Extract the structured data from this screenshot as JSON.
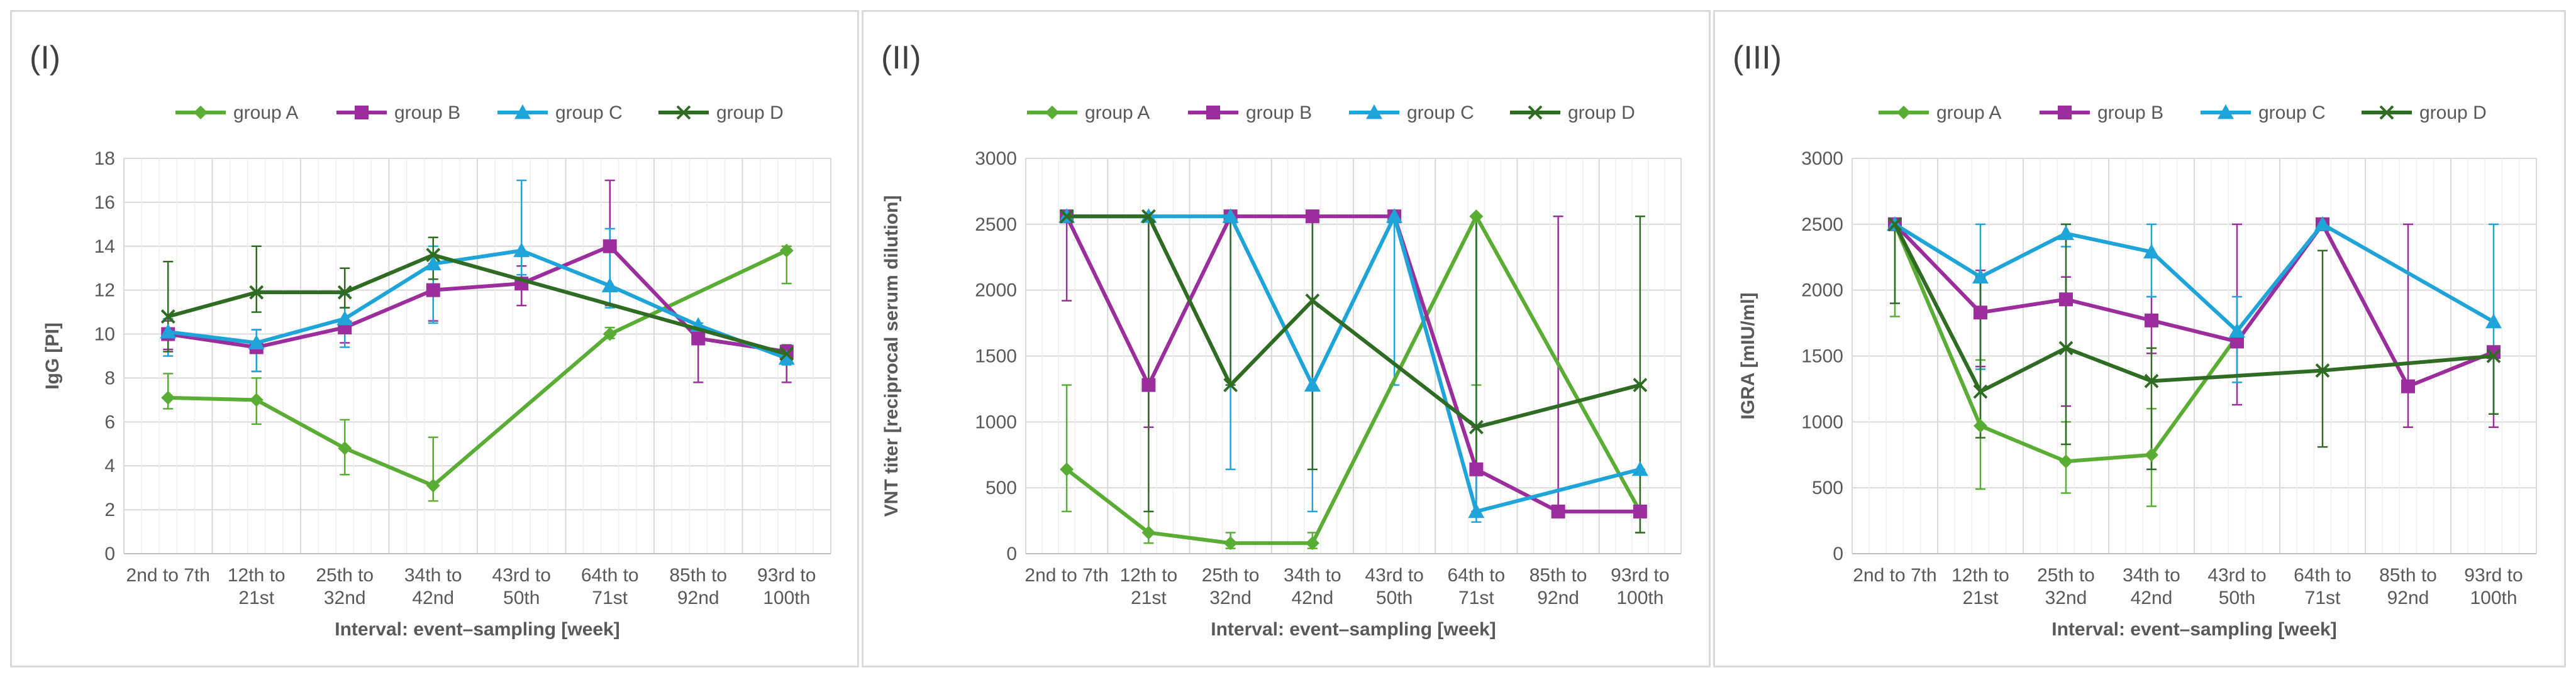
{
  "colors": {
    "group A": "#5aad34",
    "group B": "#9b2d9c",
    "group C": "#1ea4d8",
    "group D": "#2f6b23",
    "grid": "#d9d9d9",
    "text": "#595959"
  },
  "chart_data": [
    {
      "type": "line",
      "panel_label": "(I)",
      "categories": [
        [
          "2nd to 7th"
        ],
        [
          "12th to",
          "21st"
        ],
        [
          "25th to",
          "32nd"
        ],
        [
          "34th to",
          "42nd"
        ],
        [
          "43rd to",
          "50th"
        ],
        [
          "64th to",
          "71st"
        ],
        [
          "85th to",
          "92nd"
        ],
        [
          "93rd to",
          "100th"
        ]
      ],
      "xlabel": "Interval: event–sampling [week]",
      "ylabel": "IgG [PI]",
      "ylim": [
        0,
        18
      ],
      "yticks": [
        0,
        2,
        4,
        6,
        8,
        10,
        12,
        14,
        16,
        18
      ],
      "grid": true,
      "legend": "top",
      "series": [
        {
          "name": "group A",
          "marker": "diamond",
          "values": [
            7.1,
            7.0,
            4.8,
            3.1,
            null,
            10.0,
            null,
            13.8
          ],
          "err_low": [
            6.6,
            5.9,
            3.6,
            2.4,
            null,
            9.8,
            null,
            12.3
          ],
          "err_high": [
            8.2,
            8.0,
            6.1,
            5.3,
            null,
            10.3,
            null,
            14.0
          ]
        },
        {
          "name": "group B",
          "marker": "square",
          "values": [
            10.0,
            9.4,
            10.3,
            12.0,
            12.3,
            14.0,
            9.8,
            9.2
          ],
          "err_low": [
            9.3,
            8.3,
            9.6,
            10.6,
            11.3,
            11.3,
            7.8,
            7.8
          ],
          "err_high": [
            10.6,
            10.2,
            11.2,
            13.2,
            13.1,
            17.0,
            10.3,
            9.5
          ]
        },
        {
          "name": "group C",
          "marker": "triangle",
          "values": [
            10.1,
            9.6,
            10.7,
            13.2,
            13.8,
            12.2,
            10.4,
            8.9
          ],
          "err_low": [
            9.0,
            8.3,
            9.4,
            10.5,
            12.7,
            11.2,
            10.0,
            8.6
          ],
          "err_high": [
            10.7,
            10.2,
            11.8,
            14.0,
            17.0,
            14.8,
            10.5,
            9.2
          ]
        },
        {
          "name": "group D",
          "marker": "cross",
          "values": [
            10.8,
            11.9,
            11.9,
            13.6,
            null,
            null,
            null,
            9.1
          ],
          "err_low": [
            9.2,
            11.0,
            11.2,
            12.5,
            null,
            null,
            null,
            8.8
          ],
          "err_high": [
            13.3,
            14.0,
            13.0,
            14.4,
            null,
            null,
            null,
            9.5
          ]
        }
      ]
    },
    {
      "type": "line",
      "panel_label": "(II)",
      "categories": [
        [
          "2nd to 7th"
        ],
        [
          "12th to",
          "21st"
        ],
        [
          "25th to",
          "32nd"
        ],
        [
          "34th to",
          "42nd"
        ],
        [
          "43rd to",
          "50th"
        ],
        [
          "64th to",
          "71st"
        ],
        [
          "85th to",
          "92nd"
        ],
        [
          "93rd to",
          "100th"
        ]
      ],
      "xlabel": "Interval: event–sampling [week]",
      "ylabel": "VNT titer [reciprocal serum dilution]",
      "ylim": [
        0,
        3000
      ],
      "yticks": [
        0,
        500,
        1000,
        1500,
        2000,
        2500,
        3000
      ],
      "grid": true,
      "legend": "top",
      "series": [
        {
          "name": "group A",
          "marker": "diamond",
          "values": [
            640,
            160,
            80,
            80,
            null,
            2560,
            null,
            320
          ],
          "err_low": [
            320,
            80,
            40,
            40,
            null,
            1280,
            null,
            160
          ],
          "err_high": [
            1280,
            320,
            160,
            160,
            null,
            2560,
            null,
            640
          ]
        },
        {
          "name": "group B",
          "marker": "square",
          "values": [
            2560,
            1280,
            2560,
            2560,
            2560,
            640,
            320,
            320
          ],
          "err_low": [
            1920,
            960,
            2560,
            2560,
            2560,
            320,
            320,
            320
          ],
          "err_high": [
            2560,
            2560,
            2560,
            2560,
            2560,
            960,
            2560,
            320
          ]
        },
        {
          "name": "group C",
          "marker": "triangle",
          "values": [
            2560,
            2560,
            2560,
            1280,
            2560,
            320,
            null,
            640
          ],
          "err_low": [
            2560,
            2560,
            640,
            320,
            1280,
            240,
            null,
            640
          ],
          "err_high": [
            2560,
            2560,
            2560,
            2560,
            2560,
            2560,
            null,
            640
          ]
        },
        {
          "name": "group D",
          "marker": "cross",
          "values": [
            2560,
            2560,
            1280,
            1920,
            null,
            960,
            null,
            1280
          ],
          "err_low": [
            2560,
            320,
            1280,
            640,
            null,
            640,
            null,
            160
          ],
          "err_high": [
            2560,
            2560,
            2560,
            2560,
            null,
            2560,
            null,
            2560
          ]
        }
      ]
    },
    {
      "type": "line",
      "panel_label": "(III)",
      "categories": [
        [
          "2nd to 7th"
        ],
        [
          "12th to",
          "21st"
        ],
        [
          "25th to",
          "32nd"
        ],
        [
          "34th to",
          "42nd"
        ],
        [
          "43rd to",
          "50th"
        ],
        [
          "64th to",
          "71st"
        ],
        [
          "85th to",
          "92nd"
        ],
        [
          "93rd to",
          "100th"
        ]
      ],
      "xlabel": "Interval: event–sampling [week]",
      "ylabel": "IGRA [mIU/ml]",
      "ylim": [
        0,
        3000
      ],
      "yticks": [
        0,
        500,
        1000,
        1500,
        2000,
        2500,
        3000
      ],
      "grid": true,
      "legend": "top",
      "series": [
        {
          "name": "group A",
          "marker": "diamond",
          "values": [
            2500,
            970,
            700,
            750,
            1650,
            null,
            null,
            null
          ],
          "err_low": [
            1800,
            490,
            460,
            360,
            1650,
            null,
            null,
            null
          ],
          "err_high": [
            2500,
            1470,
            1000,
            1100,
            1650,
            null,
            null,
            null
          ]
        },
        {
          "name": "group B",
          "marker": "square",
          "values": [
            2500,
            1830,
            1930,
            1770,
            1610,
            2500,
            1270,
            1530
          ],
          "err_low": [
            2500,
            1420,
            1120,
            1520,
            1130,
            2500,
            960,
            960
          ],
          "err_high": [
            2500,
            2150,
            2100,
            1950,
            2500,
            2500,
            2500,
            1530
          ]
        },
        {
          "name": "group C",
          "marker": "triangle",
          "values": [
            2500,
            2100,
            2430,
            2290,
            1690,
            2500,
            null,
            1760
          ],
          "err_low": [
            2500,
            1400,
            2330,
            1950,
            1300,
            2500,
            null,
            1060
          ],
          "err_high": [
            2500,
            2500,
            2500,
            2500,
            1950,
            2500,
            null,
            2500
          ]
        },
        {
          "name": "group D",
          "marker": "cross",
          "values": [
            2500,
            1230,
            1560,
            1310,
            null,
            1390,
            null,
            1500
          ],
          "err_low": [
            1900,
            880,
            830,
            640,
            null,
            810,
            null,
            1060
          ],
          "err_high": [
            2500,
            2100,
            2500,
            1560,
            null,
            2300,
            null,
            1550
          ]
        }
      ]
    }
  ]
}
